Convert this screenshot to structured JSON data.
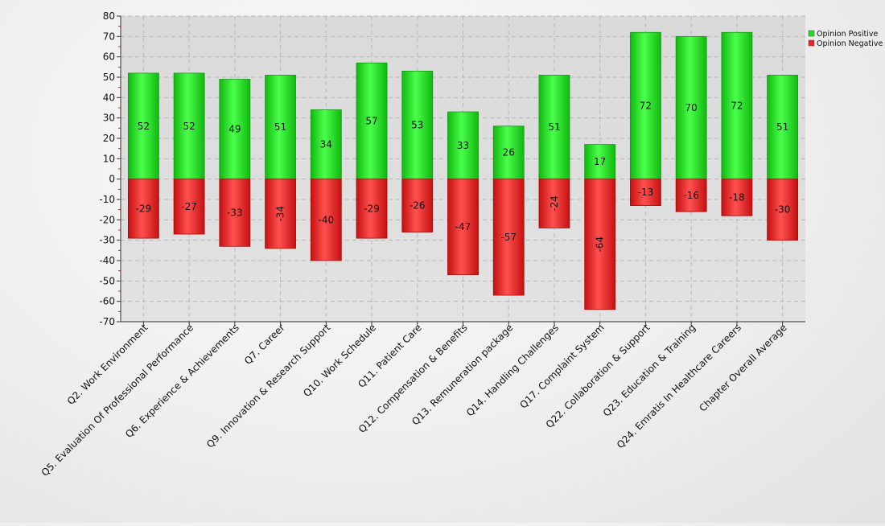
{
  "chart_data": {
    "type": "bar",
    "stacked": "diverging",
    "title": "",
    "xlabel": "",
    "ylabel": "",
    "ylim": [
      -70,
      80
    ],
    "yticks": [
      80,
      70,
      60,
      50,
      40,
      30,
      20,
      10,
      0,
      -10,
      -20,
      -30,
      -40,
      -50,
      -60,
      -70
    ],
    "grid": true,
    "legend_position": "top-right",
    "categories": [
      "Q2. Work Environment",
      "Q5. Evaluation Of Professional Performance",
      "Q6. Experience & Achievements",
      "Q7. Career",
      "Q9. Innovation & Research Support",
      "Q10. Work Schedule",
      "Q11. Patient Care",
      "Q12. Compensation & Benefits",
      "Q13. Remuneration package",
      "Q14. Handling Challenges",
      "Q17. Complaint System",
      "Q22. Collaboration & Support",
      "Q23. Education & Training",
      "Q24. Emratis In Healthcare Careers",
      "Chapter Overall Average"
    ],
    "series": [
      {
        "name": "Opinion Positive",
        "color": "#22dd22",
        "values": [
          52,
          52,
          49,
          51,
          34,
          57,
          53,
          33,
          26,
          51,
          17,
          72,
          70,
          72,
          51
        ]
      },
      {
        "name": "Opinion Negative",
        "color": "#ee2222",
        "values": [
          -29,
          -27,
          -33,
          -34,
          -40,
          -29,
          -26,
          -47,
          -57,
          -24,
          -64,
          -13,
          -16,
          -18,
          -30
        ],
        "rotated_label_indices": [
          3,
          9,
          10
        ]
      }
    ]
  }
}
